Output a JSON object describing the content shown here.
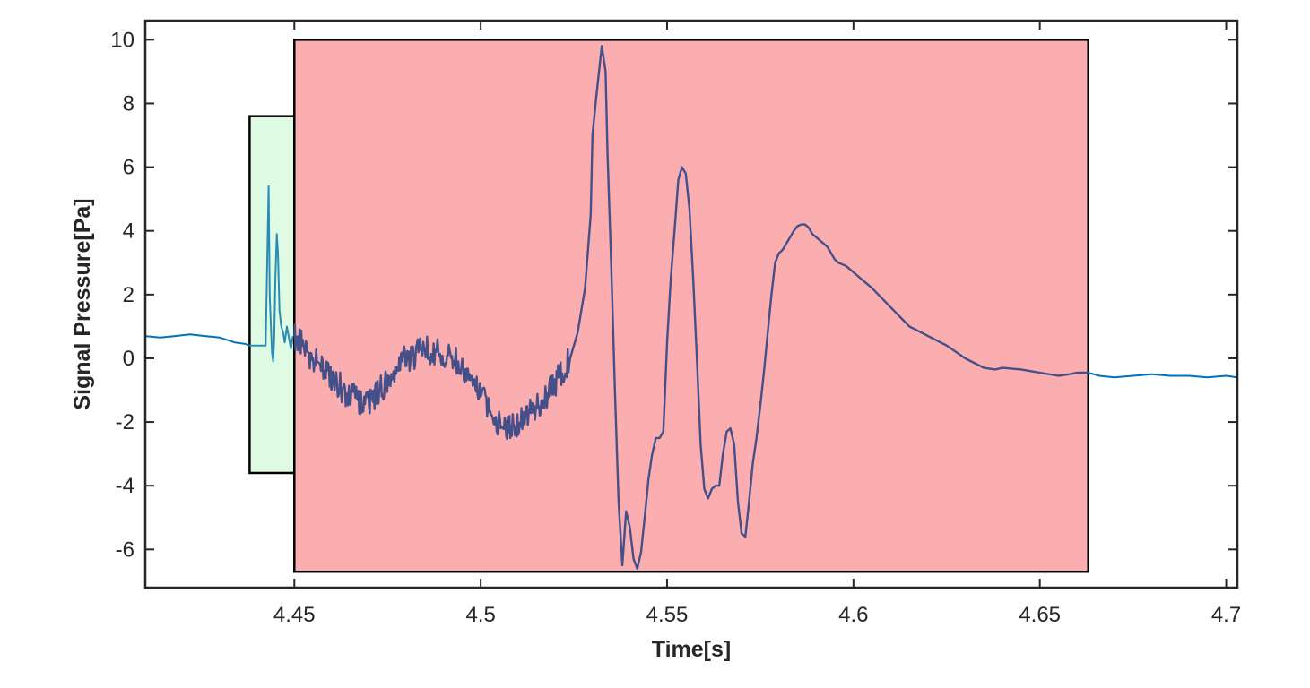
{
  "chart_data": {
    "type": "line",
    "title": "",
    "xlabel": "Time[s]",
    "ylabel": "Signal Pressure[Pa]",
    "xlim": [
      4.41,
      4.703
    ],
    "ylim": [
      -7.2,
      10.6
    ],
    "xticks": [
      4.45,
      4.5,
      4.55,
      4.6,
      4.65,
      4.7
    ],
    "xtick_labels": [
      "4.45",
      "4.5",
      "4.55",
      "4.6",
      "4.65",
      "4.7"
    ],
    "yticks": [
      10,
      8,
      6,
      4,
      2,
      0,
      -2,
      -4,
      -6
    ],
    "ytick_labels": [
      "10",
      "8",
      "6",
      "4",
      "2",
      "0",
      "-2",
      "-4",
      "-6"
    ],
    "grid": false,
    "legend": "none",
    "regions": [
      {
        "x0": 4.438,
        "x1": 4.45,
        "y0": -3.6,
        "y1": 7.6,
        "color": "#e0fbe4"
      },
      {
        "x0": 4.45,
        "x1": 4.663,
        "y0": -6.7,
        "y1": 10.0,
        "color": "#fbaeb0"
      }
    ],
    "series": [
      {
        "color": "#0072bd",
        "x": [
          4.41,
          4.414,
          4.418,
          4.422,
          4.426,
          4.43,
          4.434,
          4.437,
          4.438
        ],
        "y": [
          0.7,
          0.65,
          0.7,
          0.75,
          0.7,
          0.65,
          0.5,
          0.45,
          0.4
        ]
      },
      {
        "color": "#2a8cb6",
        "x": [
          4.438,
          4.4423,
          4.4428,
          4.4431,
          4.4434,
          4.4437,
          4.444,
          4.4443,
          4.4446,
          4.4449,
          4.4453,
          4.4456,
          4.446,
          4.4465,
          4.447,
          4.4474,
          4.448,
          4.4486,
          4.4491,
          4.4496
        ],
        "y": [
          0.4,
          0.4,
          3.5,
          5.4,
          2.0,
          1.0,
          0.2,
          -0.1,
          0.6,
          2.5,
          3.9,
          3.3,
          1.5,
          1.0,
          0.8,
          0.5,
          1.0,
          0.6,
          0.3,
          0.7
        ]
      },
      {
        "color": "#0072bd",
        "x": [
          4.663,
          4.666,
          4.67,
          4.675,
          4.68,
          4.685,
          4.69,
          4.695,
          4.7,
          4.703
        ],
        "y": [
          -0.45,
          -0.55,
          -0.6,
          -0.55,
          -0.5,
          -0.55,
          -0.55,
          -0.6,
          -0.55,
          -0.6
        ]
      },
      {
        "color": "#454f88",
        "x": [
          4.45,
          4.452,
          4.455,
          4.458,
          4.461,
          4.464,
          4.467,
          4.47,
          4.473,
          4.476,
          4.479,
          4.482,
          4.485,
          4.488,
          4.491,
          4.494,
          4.497,
          4.5,
          4.503,
          4.506,
          4.509,
          4.512,
          4.515,
          4.518,
          4.521,
          4.524,
          4.526,
          4.528,
          4.5295,
          4.53,
          4.531,
          4.5325,
          4.5335,
          4.534,
          4.535,
          4.536,
          4.537,
          4.538,
          4.539,
          4.54,
          4.541,
          4.542,
          4.543,
          4.544,
          4.545,
          4.546,
          4.547,
          4.548,
          4.549,
          4.55,
          4.551,
          4.552,
          4.553,
          4.554,
          4.555,
          4.556,
          4.557,
          4.558,
          4.559,
          4.56,
          4.561,
          4.562,
          4.563,
          4.564,
          4.565,
          4.566,
          4.567,
          4.568,
          4.569,
          4.57,
          4.571,
          4.572,
          4.573,
          4.574,
          4.575,
          4.576,
          4.577,
          4.578,
          4.579,
          4.58,
          4.581,
          4.582,
          4.583,
          4.584,
          4.585,
          4.586,
          4.587,
          4.588,
          4.589,
          4.59,
          4.591,
          4.592,
          4.593,
          4.594,
          4.595,
          4.596,
          4.598,
          4.6,
          4.605,
          4.61,
          4.615,
          4.62,
          4.625,
          4.63,
          4.635,
          4.638,
          4.64,
          4.645,
          4.65,
          4.655,
          4.658,
          4.66,
          4.663
        ],
        "y": [
          0.7,
          0.4,
          0.0,
          -0.4,
          -0.7,
          -1.1,
          -1.3,
          -1.4,
          -1.0,
          -0.5,
          -0.1,
          0.1,
          0.25,
          0.2,
          0.1,
          -0.1,
          -0.5,
          -1.2,
          -1.8,
          -2.2,
          -2.1,
          -1.8,
          -1.5,
          -1.1,
          -0.6,
          0.0,
          0.8,
          2.2,
          4.5,
          7.0,
          8.2,
          9.8,
          9.0,
          6.5,
          3.0,
          -1.0,
          -4.5,
          -6.5,
          -4.8,
          -5.3,
          -6.3,
          -6.6,
          -6.1,
          -5.0,
          -3.8,
          -3.0,
          -2.5,
          -2.5,
          -2.3,
          0.5,
          2.5,
          4.0,
          5.6,
          6.0,
          5.8,
          4.7,
          2.5,
          0.0,
          -2.7,
          -4.1,
          -4.4,
          -4.1,
          -4.0,
          -4.0,
          -3.0,
          -2.3,
          -2.2,
          -2.7,
          -4.5,
          -5.5,
          -5.6,
          -4.5,
          -3.3,
          -2.5,
          -1.5,
          -0.4,
          0.8,
          2.0,
          3.0,
          3.3,
          3.4,
          3.6,
          3.8,
          4.0,
          4.15,
          4.2,
          4.2,
          4.1,
          3.9,
          3.8,
          3.7,
          3.6,
          3.5,
          3.3,
          3.1,
          3.0,
          2.9,
          2.7,
          2.2,
          1.6,
          1.0,
          0.7,
          0.4,
          0.0,
          -0.3,
          -0.35,
          -0.3,
          -0.35,
          -0.45,
          -0.55,
          -0.5,
          -0.45,
          -0.45
        ],
        "noise": {
          "x0": 4.45,
          "x1": 4.524,
          "amplitude": 0.45
        }
      }
    ]
  }
}
